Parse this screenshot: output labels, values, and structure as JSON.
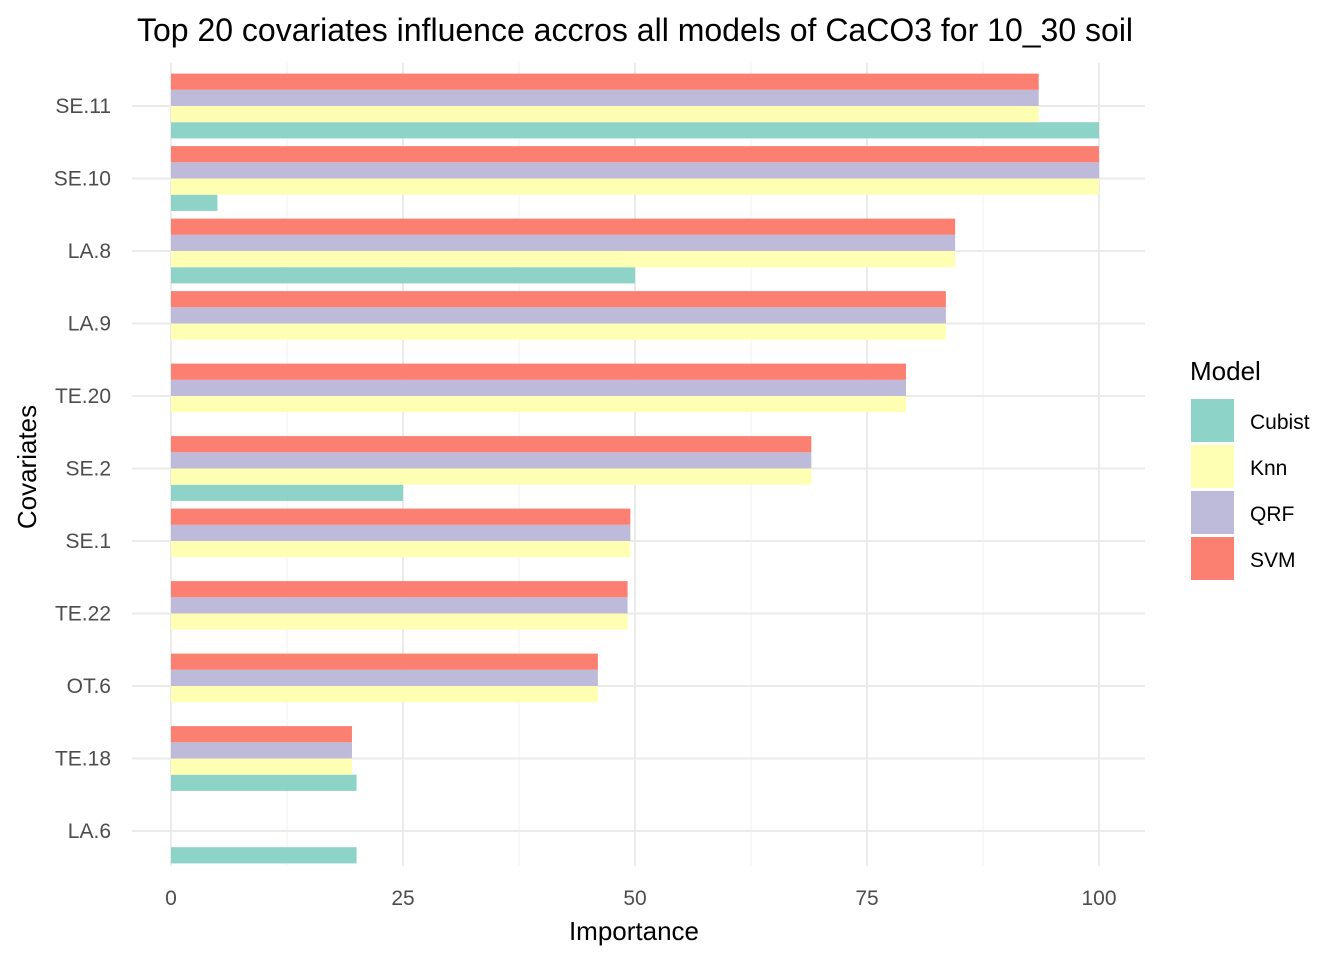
{
  "chart_data": {
    "type": "bar",
    "orientation": "horizontal",
    "title": "Top 20 covariates influence accros all models of CaCO3 for 10_30 soil",
    "xlabel": "Importance",
    "ylabel": "Covariates",
    "xlim": [
      0,
      100
    ],
    "xticks": [
      0,
      25,
      50,
      75,
      100
    ],
    "grid": true,
    "legend": {
      "title": "Model",
      "position": "right"
    },
    "categories": [
      "SE.11",
      "SE.10",
      "LA.8",
      "LA.9",
      "TE.20",
      "SE.2",
      "SE.1",
      "TE.22",
      "OT.6",
      "TE.18",
      "LA.6"
    ],
    "series": [
      {
        "name": "Cubist",
        "color": "#8dd3c7",
        "values": [
          100,
          5,
          50,
          null,
          null,
          25,
          null,
          null,
          null,
          20,
          20
        ]
      },
      {
        "name": "Knn",
        "color": "#ffffb3",
        "values": [
          93.5,
          100,
          84.5,
          83.5,
          79.2,
          69,
          49.5,
          49.2,
          46,
          19.5,
          null
        ]
      },
      {
        "name": "QRF",
        "color": "#bebada",
        "values": [
          93.5,
          100,
          84.5,
          83.5,
          79.2,
          69,
          49.5,
          49.2,
          46,
          19.5,
          null
        ]
      },
      {
        "name": "SVM",
        "color": "#fb8072",
        "values": [
          93.5,
          100,
          84.5,
          83.5,
          79.2,
          69,
          49.5,
          49.2,
          46,
          19.5,
          null
        ]
      }
    ]
  }
}
